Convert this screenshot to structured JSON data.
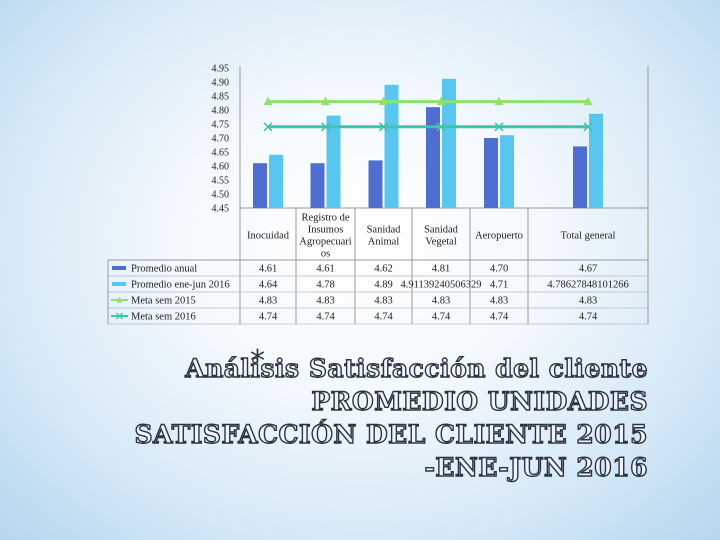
{
  "chart_data": {
    "type": "bar",
    "categories": [
      "Inocuidad",
      "Registro de Insumos Agropecuarios",
      "Sanidad Animal",
      "Sanidad Vegetal",
      "Aeropuerto",
      "Total general"
    ],
    "category_lines": [
      [
        "Inocuidad"
      ],
      [
        "Registro de",
        "Insumos",
        "Agropecuari",
        "os"
      ],
      [
        "Sanidad",
        "Animal"
      ],
      [
        "Sanidad",
        "Vegetal"
      ],
      [
        "Aeropuerto"
      ],
      [
        "Total general"
      ]
    ],
    "series": [
      {
        "name": "Promedio anual",
        "kind": "bar",
        "color": "#4f6fd0",
        "values": [
          4.61,
          4.61,
          4.62,
          4.81,
          4.7,
          4.67
        ],
        "labels": [
          "4.61",
          "4.61",
          "4.62",
          "4.81",
          "4.70",
          "4.67"
        ]
      },
      {
        "name": "Promedio ene-jun 2016",
        "kind": "bar",
        "color": "#58c6ee",
        "values": [
          4.64,
          4.78,
          4.89,
          4.911392405063291,
          4.71,
          4.786278481012658
        ],
        "labels": [
          "4.64",
          "4.78",
          "4.89",
          "4.91139240506329",
          "4.71",
          "4.78627848101266"
        ]
      },
      {
        "name": "Meta sem 2015",
        "kind": "line",
        "marker": "triangle",
        "color": "#8ee070",
        "values": [
          4.83,
          4.83,
          4.83,
          4.83,
          4.83,
          4.83
        ],
        "labels": [
          "4.83",
          "4.83",
          "4.83",
          "4.83",
          "4.83",
          "4.83"
        ]
      },
      {
        "name": "Meta sem 2016",
        "kind": "line",
        "marker": "x",
        "color": "#3fc3ad",
        "values": [
          4.74,
          4.74,
          4.74,
          4.74,
          4.74,
          4.74
        ],
        "labels": [
          "4.74",
          "4.74",
          "4.74",
          "4.74",
          "4.74",
          "4.74"
        ]
      }
    ],
    "ylim": [
      4.45,
      4.95
    ],
    "yticks": [
      "4.95",
      "4.90",
      "4.85",
      "4.80",
      "4.75",
      "4.70",
      "4.65",
      "4.60",
      "4.55",
      "4.50",
      "4.45"
    ],
    "grid": false,
    "legend": "data-table"
  },
  "title": {
    "bullet": "*",
    "lines": [
      "Análisis Satisfacción del cliente",
      "PROMEDIO UNIDADES",
      "SATISFACCIÓN DEL CLIENTE 2015",
      "-ENE-JUN 2016"
    ]
  }
}
